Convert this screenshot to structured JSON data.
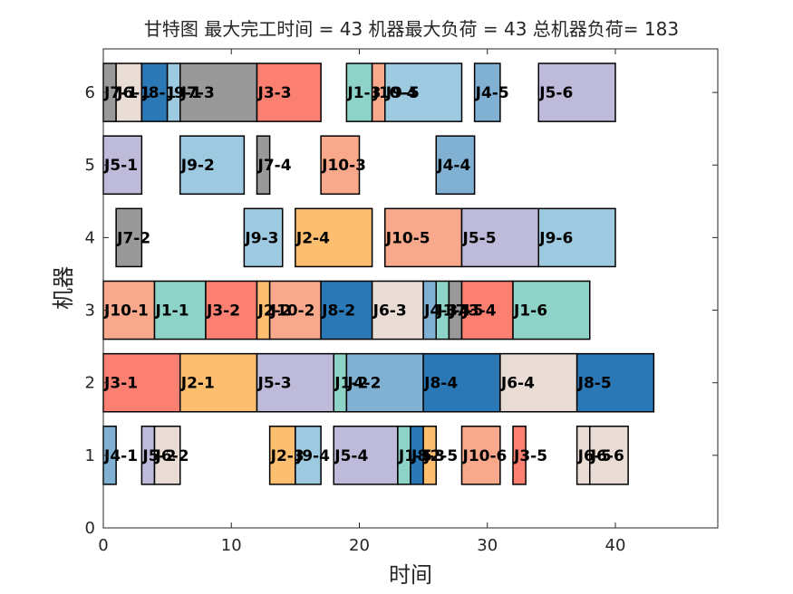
{
  "chart_data": {
    "type": "gantt",
    "title": "甘特图 最大完工时间 = 43 机器最大负荷 = 43 总机器负荷= 183",
    "xlabel": "时间",
    "ylabel": "机器",
    "xlim": [
      0,
      48
    ],
    "ylim": [
      0,
      6.6
    ],
    "xticks": [
      "0",
      "10",
      "20",
      "30",
      "40"
    ],
    "yticks": [
      "0",
      "1",
      "2",
      "3",
      "4",
      "5",
      "6"
    ],
    "grid": false,
    "job_colors": {
      "J1": "#8DD3C7",
      "J2": "#FDBF6F",
      "J3": "#FB8072",
      "J4": "#80B1D3",
      "J5": "#BEBADA",
      "J6": "#E8DCD4",
      "J7": "#999999",
      "J8": "#2A78B5",
      "J9": "#9ECAE1",
      "J10": "#F9A98B"
    },
    "tasks": [
      {
        "machine": 1,
        "start": 0,
        "end": 1,
        "label": "J4-1",
        "job": "J4"
      },
      {
        "machine": 1,
        "start": 3,
        "end": 4,
        "label": "J5-2",
        "job": "J5"
      },
      {
        "machine": 1,
        "start": 4,
        "end": 6,
        "label": "J6-2",
        "job": "J6"
      },
      {
        "machine": 1,
        "start": 13,
        "end": 15,
        "label": "J2-3",
        "job": "J2"
      },
      {
        "machine": 1,
        "start": 15,
        "end": 17,
        "label": "J9-4",
        "job": "J9"
      },
      {
        "machine": 1,
        "start": 18,
        "end": 23,
        "label": "J5-4",
        "job": "J5"
      },
      {
        "machine": 1,
        "start": 23,
        "end": 24,
        "label": "J1-5",
        "job": "J1"
      },
      {
        "machine": 1,
        "start": 24,
        "end": 25,
        "label": "J8-3",
        "job": "J8"
      },
      {
        "machine": 1,
        "start": 25,
        "end": 26,
        "label": "J2-5",
        "job": "J2"
      },
      {
        "machine": 1,
        "start": 28,
        "end": 31,
        "label": "J10-6",
        "job": "J10"
      },
      {
        "machine": 1,
        "start": 32,
        "end": 33,
        "label": "J3-5",
        "job": "J3"
      },
      {
        "machine": 1,
        "start": 37,
        "end": 38,
        "label": "J6-5",
        "job": "J6"
      },
      {
        "machine": 1,
        "start": 38,
        "end": 41,
        "label": "J6-6",
        "job": "J6"
      },
      {
        "machine": 2,
        "start": 0,
        "end": 6,
        "label": "J3-1",
        "job": "J3"
      },
      {
        "machine": 2,
        "start": 6,
        "end": 12,
        "label": "J2-1",
        "job": "J2"
      },
      {
        "machine": 2,
        "start": 12,
        "end": 18,
        "label": "J5-3",
        "job": "J5"
      },
      {
        "machine": 2,
        "start": 18,
        "end": 19,
        "label": "J1-2",
        "job": "J1"
      },
      {
        "machine": 2,
        "start": 19,
        "end": 25,
        "label": "J4-2",
        "job": "J4"
      },
      {
        "machine": 2,
        "start": 25,
        "end": 31,
        "label": "J8-4",
        "job": "J8"
      },
      {
        "machine": 2,
        "start": 31,
        "end": 37,
        "label": "J6-4",
        "job": "J6"
      },
      {
        "machine": 2,
        "start": 37,
        "end": 43,
        "label": "J8-5",
        "job": "J8"
      },
      {
        "machine": 3,
        "start": 0,
        "end": 4,
        "label": "J10-1",
        "job": "J10"
      },
      {
        "machine": 3,
        "start": 4,
        "end": 8,
        "label": "J1-1",
        "job": "J1"
      },
      {
        "machine": 3,
        "start": 8,
        "end": 12,
        "label": "J3-2",
        "job": "J3"
      },
      {
        "machine": 3,
        "start": 12,
        "end": 13,
        "label": "J2-2",
        "job": "J2"
      },
      {
        "machine": 3,
        "start": 13,
        "end": 17,
        "label": "J10-2",
        "job": "J10"
      },
      {
        "machine": 3,
        "start": 17,
        "end": 21,
        "label": "J8-2",
        "job": "J8"
      },
      {
        "machine": 3,
        "start": 21,
        "end": 25,
        "label": "J6-3",
        "job": "J6"
      },
      {
        "machine": 3,
        "start": 25,
        "end": 26,
        "label": "J4-3",
        "job": "J4"
      },
      {
        "machine": 3,
        "start": 26,
        "end": 27,
        "label": "J1-4",
        "job": "J1"
      },
      {
        "machine": 3,
        "start": 27,
        "end": 28,
        "label": "J7-5",
        "job": "J7"
      },
      {
        "machine": 3,
        "start": 28,
        "end": 32,
        "label": "J3-4",
        "job": "J3"
      },
      {
        "machine": 3,
        "start": 32,
        "end": 38,
        "label": "J1-6",
        "job": "J1"
      },
      {
        "machine": 4,
        "start": 1,
        "end": 3,
        "label": "J7-2",
        "job": "J7"
      },
      {
        "machine": 4,
        "start": 11,
        "end": 14,
        "label": "J9-3",
        "job": "J9"
      },
      {
        "machine": 4,
        "start": 15,
        "end": 21,
        "label": "J2-4",
        "job": "J2"
      },
      {
        "machine": 4,
        "start": 22,
        "end": 28,
        "label": "J10-5",
        "job": "J10"
      },
      {
        "machine": 4,
        "start": 28,
        "end": 34,
        "label": "J5-5",
        "job": "J5"
      },
      {
        "machine": 4,
        "start": 34,
        "end": 40,
        "label": "J9-6",
        "job": "J9"
      },
      {
        "machine": 5,
        "start": 0,
        "end": 3,
        "label": "J5-1",
        "job": "J5"
      },
      {
        "machine": 5,
        "start": 6,
        "end": 11,
        "label": "J9-2",
        "job": "J9"
      },
      {
        "machine": 5,
        "start": 12,
        "end": 13,
        "label": "J7-4",
        "job": "J7"
      },
      {
        "machine": 5,
        "start": 17,
        "end": 20,
        "label": "J10-3",
        "job": "J10"
      },
      {
        "machine": 5,
        "start": 26,
        "end": 29,
        "label": "J4-4",
        "job": "J4"
      },
      {
        "machine": 6,
        "start": 0,
        "end": 1,
        "label": "J7-1",
        "job": "J7"
      },
      {
        "machine": 6,
        "start": 1,
        "end": 3,
        "label": "J6-1",
        "job": "J6"
      },
      {
        "machine": 6,
        "start": 3,
        "end": 5,
        "label": "J8-1",
        "job": "J8"
      },
      {
        "machine": 6,
        "start": 5,
        "end": 6,
        "label": "J9-1",
        "job": "J9"
      },
      {
        "machine": 6,
        "start": 6,
        "end": 12,
        "label": "J7-3",
        "job": "J7"
      },
      {
        "machine": 6,
        "start": 12,
        "end": 17,
        "label": "J3-3",
        "job": "J3"
      },
      {
        "machine": 6,
        "start": 19,
        "end": 21,
        "label": "J1-3",
        "job": "J1"
      },
      {
        "machine": 6,
        "start": 21,
        "end": 22,
        "label": "J10-4",
        "job": "J10"
      },
      {
        "machine": 6,
        "start": 22,
        "end": 28,
        "label": "J9-5",
        "job": "J9"
      },
      {
        "machine": 6,
        "start": 29,
        "end": 31,
        "label": "J4-5",
        "job": "J4"
      },
      {
        "machine": 6,
        "start": 34,
        "end": 40,
        "label": "J5-6",
        "job": "J5"
      }
    ]
  }
}
